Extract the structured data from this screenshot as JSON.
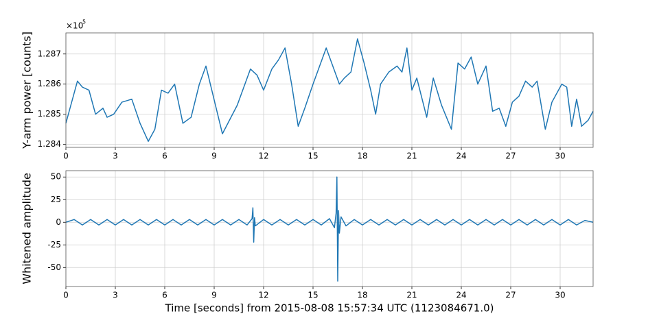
{
  "chart_data": [
    {
      "type": "line",
      "ylabel": "Y-arm power [counts]",
      "y_offset_label": "×10",
      "y_offset_exponent": "5",
      "xlim": [
        0,
        32
      ],
      "xticks": [
        0,
        3,
        6,
        9,
        12,
        15,
        18,
        21,
        24,
        27,
        30
      ],
      "ylim": [
        1.2839,
        1.2877
      ],
      "yticks": [
        1.284,
        1.285,
        1.286,
        1.287
      ],
      "grid": true,
      "x": [
        0,
        0.3,
        0.7,
        1.0,
        1.4,
        1.8,
        2.25,
        2.5,
        2.9,
        3.4,
        4.0,
        4.5,
        5.0,
        5.4,
        5.8,
        6.2,
        6.6,
        7.1,
        7.6,
        8.1,
        8.5,
        9.5,
        10.4,
        11.2,
        11.6,
        12.0,
        12.5,
        12.9,
        13.3,
        13.7,
        14.1,
        14.5,
        15.0,
        15.4,
        15.8,
        16.2,
        16.6,
        16.9,
        17.3,
        17.7,
        18.1,
        18.5,
        18.8,
        19.1,
        19.6,
        20.1,
        20.4,
        20.7,
        21.0,
        21.3,
        21.9,
        22.3,
        22.8,
        23.4,
        23.8,
        24.2,
        24.6,
        25.0,
        25.5,
        25.9,
        26.3,
        26.7,
        27.1,
        27.5,
        27.9,
        28.3,
        28.6,
        29.1,
        29.5,
        30.1,
        30.4,
        30.7,
        31.0,
        31.3,
        31.7,
        32.0
      ],
      "series": [
        {
          "color": "#1f77b4",
          "values": [
            1.2847,
            1.2853,
            1.2861,
            1.2859,
            1.2858,
            1.285,
            1.2852,
            1.2849,
            1.285,
            1.2854,
            1.2855,
            1.2847,
            1.2841,
            1.2845,
            1.2858,
            1.2857,
            1.286,
            1.2847,
            1.2849,
            1.286,
            1.2866,
            1.28435,
            1.2853,
            1.2865,
            1.2863,
            1.2858,
            1.2865,
            1.2868,
            1.2872,
            1.286,
            1.2846,
            1.2852,
            1.286,
            1.2866,
            1.2872,
            1.2866,
            1.286,
            1.2862,
            1.2864,
            1.2875,
            1.2867,
            1.2858,
            1.285,
            1.286,
            1.2864,
            1.2866,
            1.2864,
            1.2872,
            1.2858,
            1.2862,
            1.2849,
            1.2862,
            1.2853,
            1.2845,
            1.2867,
            1.2865,
            1.2869,
            1.286,
            1.2866,
            1.2851,
            1.2852,
            1.2846,
            1.2854,
            1.2856,
            1.2861,
            1.2859,
            1.2861,
            1.2845,
            1.2854,
            1.286,
            1.2859,
            1.2846,
            1.2855,
            1.2846,
            1.2848,
            1.2851
          ]
        }
      ]
    },
    {
      "type": "line",
      "ylabel": "Whitened amplitude",
      "xlabel": "Time [seconds] from 2015-08-08 15:57:34 UTC (1123084671.0)",
      "xlim": [
        0,
        32
      ],
      "xticks": [
        0,
        3,
        6,
        9,
        12,
        15,
        18,
        21,
        24,
        27,
        30
      ],
      "ylim": [
        -71,
        57
      ],
      "yticks": [
        -50,
        -25,
        0,
        25,
        50
      ],
      "grid": true,
      "x": [
        0,
        0.5,
        1,
        1.5,
        2,
        2.5,
        3,
        3.5,
        4,
        4.5,
        5,
        5.5,
        6,
        6.5,
        7,
        7.5,
        8,
        8.5,
        9,
        9.5,
        10,
        10.5,
        11,
        11.3,
        11.35,
        11.4,
        11.45,
        11.5,
        12,
        12.5,
        13,
        13.5,
        14,
        14.5,
        15,
        15.5,
        16,
        16.3,
        16.4,
        16.45,
        16.5,
        16.55,
        16.6,
        16.7,
        17,
        17.5,
        18,
        18.5,
        19,
        19.5,
        20,
        20.5,
        21,
        21.5,
        22,
        22.5,
        23,
        23.5,
        24,
        24.5,
        25,
        25.5,
        26,
        26.5,
        27,
        27.5,
        28,
        28.5,
        29,
        29.5,
        30,
        30.5,
        31,
        31.5,
        32
      ],
      "series": [
        {
          "color": "#1f77b4",
          "values": [
            0,
            3,
            -3,
            3,
            -3,
            3,
            -3,
            3,
            -3,
            3,
            -3,
            3,
            -3,
            3,
            -3,
            3,
            -3,
            3,
            -3,
            3,
            -3,
            3,
            -3,
            4,
            16,
            -22,
            5,
            -4,
            3,
            -3,
            3,
            -3,
            3,
            -3,
            3,
            -3,
            4,
            -6,
            10,
            50,
            -65,
            13,
            -12,
            6,
            -4,
            3,
            -3,
            3,
            -3,
            3,
            -3,
            3,
            -3,
            3,
            -3,
            3,
            -3,
            3,
            -3,
            3,
            -3,
            3,
            -3,
            3,
            -3,
            3,
            -3,
            3,
            -3,
            3,
            -3,
            3,
            -3,
            2,
            0
          ]
        }
      ]
    }
  ]
}
